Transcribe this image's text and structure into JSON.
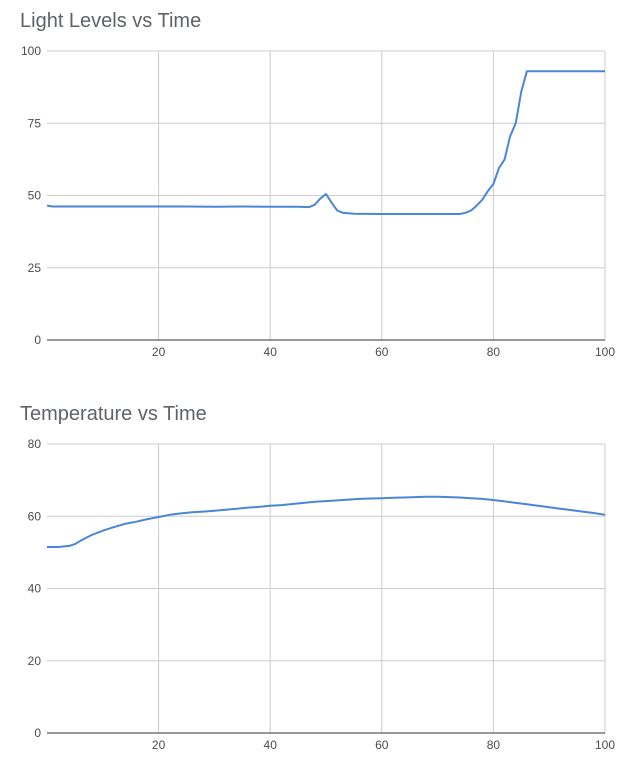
{
  "charts": [
    {
      "chart_data": {
        "type": "line",
        "title": "Light Levels vs Time",
        "xlabel": "",
        "ylabel": "",
        "xlim": [
          0,
          100
        ],
        "ylim": [
          0,
          100
        ],
        "x_ticks": [
          20,
          40,
          60,
          80,
          100
        ],
        "y_ticks": [
          0,
          25,
          50,
          75,
          100
        ],
        "grid": true,
        "legend": "none",
        "color": "#4a86d8",
        "series": [
          {
            "points": [
              [
                0,
                46.5
              ],
              [
                1,
                46.2
              ],
              [
                5,
                46.2
              ],
              [
                10,
                46.2
              ],
              [
                15,
                46.2
              ],
              [
                20,
                46.2
              ],
              [
                25,
                46.2
              ],
              [
                30,
                46.1
              ],
              [
                35,
                46.2
              ],
              [
                40,
                46.1
              ],
              [
                45,
                46.1
              ],
              [
                47,
                46.0
              ],
              [
                48,
                46.8
              ],
              [
                49,
                49.0
              ],
              [
                50,
                50.5
              ],
              [
                51,
                47.5
              ],
              [
                52,
                44.8
              ],
              [
                53,
                44.0
              ],
              [
                55,
                43.7
              ],
              [
                60,
                43.6
              ],
              [
                65,
                43.6
              ],
              [
                70,
                43.6
              ],
              [
                74,
                43.6
              ],
              [
                75,
                44.0
              ],
              [
                76,
                44.8
              ],
              [
                77,
                46.5
              ],
              [
                78,
                48.5
              ],
              [
                79,
                51.5
              ],
              [
                80,
                54.0
              ],
              [
                81,
                59.5
              ],
              [
                82,
                62.5
              ],
              [
                83,
                70.5
              ],
              [
                84,
                75.0
              ],
              [
                85,
                86.0
              ],
              [
                86,
                93.0
              ],
              [
                90,
                93.0
              ],
              [
                95,
                93.0
              ],
              [
                100,
                93.0
              ]
            ]
          }
        ]
      }
    },
    {
      "chart_data": {
        "type": "line",
        "title": "Temperature vs Time",
        "xlabel": "",
        "ylabel": "",
        "xlim": [
          0,
          100
        ],
        "ylim": [
          0,
          80
        ],
        "x_ticks": [
          20,
          40,
          60,
          80,
          100
        ],
        "y_ticks": [
          0,
          20,
          40,
          60,
          80
        ],
        "grid": true,
        "legend": "none",
        "color": "#4a86d8",
        "series": [
          {
            "points": [
              [
                0,
                51.5
              ],
              [
                2,
                51.5
              ],
              [
                4,
                51.8
              ],
              [
                5,
                52.3
              ],
              [
                6,
                53.2
              ],
              [
                8,
                54.8
              ],
              [
                10,
                56.0
              ],
              [
                12,
                57.0
              ],
              [
                14,
                57.9
              ],
              [
                16,
                58.5
              ],
              [
                18,
                59.2
              ],
              [
                20,
                59.8
              ],
              [
                22,
                60.4
              ],
              [
                24,
                60.8
              ],
              [
                26,
                61.1
              ],
              [
                28,
                61.3
              ],
              [
                30,
                61.5
              ],
              [
                32,
                61.8
              ],
              [
                34,
                62.1
              ],
              [
                36,
                62.4
              ],
              [
                38,
                62.6
              ],
              [
                40,
                62.9
              ],
              [
                42,
                63.1
              ],
              [
                44,
                63.4
              ],
              [
                46,
                63.7
              ],
              [
                48,
                64.0
              ],
              [
                50,
                64.2
              ],
              [
                52,
                64.4
              ],
              [
                54,
                64.6
              ],
              [
                56,
                64.8
              ],
              [
                58,
                64.9
              ],
              [
                60,
                65.0
              ],
              [
                62,
                65.1
              ],
              [
                64,
                65.2
              ],
              [
                66,
                65.3
              ],
              [
                68,
                65.4
              ],
              [
                70,
                65.4
              ],
              [
                72,
                65.3
              ],
              [
                74,
                65.2
              ],
              [
                76,
                65.0
              ],
              [
                78,
                64.8
              ],
              [
                80,
                64.5
              ],
              [
                82,
                64.1
              ],
              [
                84,
                63.7
              ],
              [
                86,
                63.3
              ],
              [
                88,
                62.9
              ],
              [
                90,
                62.5
              ],
              [
                92,
                62.1
              ],
              [
                94,
                61.7
              ],
              [
                96,
                61.3
              ],
              [
                98,
                60.9
              ],
              [
                100,
                60.4
              ]
            ]
          }
        ]
      }
    }
  ]
}
